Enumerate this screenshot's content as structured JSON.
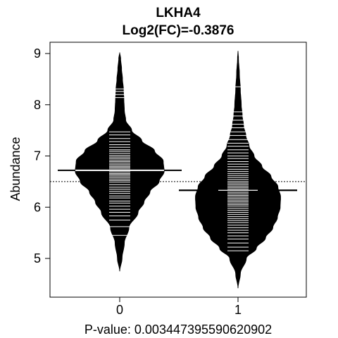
{
  "chart_data": {
    "type": "beanplot",
    "title": "LKHA4",
    "subtitle": "Log2(FC)=-0.3876",
    "xlabel": "P-value: 0.00344739559062090​2",
    "ylabel": "Abundance",
    "categories": [
      "0",
      "1"
    ],
    "ylim": [
      4.3,
      9.2
    ],
    "yticks": [
      5,
      6,
      7,
      8,
      9
    ],
    "overall_reference_line": 6.5,
    "grid": false,
    "colors": {
      "bean": "#000000",
      "stripe": "#ffffff",
      "background": "#ffffff"
    },
    "groups": [
      {
        "category": "0",
        "mean": 6.72,
        "range": [
          4.75,
          9.02
        ],
        "density_profile": [
          [
            4.75,
            0.0
          ],
          [
            5.0,
            0.05
          ],
          [
            5.3,
            0.1
          ],
          [
            5.6,
            0.2
          ],
          [
            5.9,
            0.4
          ],
          [
            6.1,
            0.53
          ],
          [
            6.3,
            0.66
          ],
          [
            6.5,
            0.86
          ],
          [
            6.7,
            0.97
          ],
          [
            6.9,
            0.95
          ],
          [
            7.1,
            0.76
          ],
          [
            7.3,
            0.48
          ],
          [
            7.5,
            0.26
          ],
          [
            7.7,
            0.13
          ],
          [
            7.9,
            0.1
          ],
          [
            8.1,
            0.09
          ],
          [
            8.3,
            0.08
          ],
          [
            8.5,
            0.06
          ],
          [
            8.7,
            0.04
          ],
          [
            8.9,
            0.02
          ],
          [
            9.02,
            0.0
          ]
        ],
        "observations": [
          5.45,
          5.62,
          5.75,
          5.83,
          5.9,
          5.96,
          6.02,
          6.08,
          6.12,
          6.18,
          6.22,
          6.27,
          6.31,
          6.35,
          6.39,
          6.44,
          6.49,
          6.52,
          6.55,
          6.58,
          6.61,
          6.64,
          6.66,
          6.69,
          6.72,
          6.75,
          6.78,
          6.8,
          6.83,
          6.86,
          6.89,
          6.92,
          6.95,
          6.98,
          7.01,
          7.05,
          7.09,
          7.12,
          7.17,
          7.22,
          7.28,
          7.34,
          7.41,
          7.47,
          8.14,
          8.2,
          8.26,
          8.31
        ]
      },
      {
        "category": "1",
        "mean": 6.33,
        "range": [
          4.42,
          9.05
        ],
        "density_profile": [
          [
            4.42,
            0.0
          ],
          [
            4.7,
            0.05
          ],
          [
            5.0,
            0.18
          ],
          [
            5.2,
            0.4
          ],
          [
            5.4,
            0.6
          ],
          [
            5.6,
            0.76
          ],
          [
            5.8,
            0.86
          ],
          [
            6.0,
            0.92
          ],
          [
            6.2,
            0.93
          ],
          [
            6.4,
            0.87
          ],
          [
            6.6,
            0.72
          ],
          [
            6.8,
            0.52
          ],
          [
            7.0,
            0.35
          ],
          [
            7.2,
            0.24
          ],
          [
            7.4,
            0.17
          ],
          [
            7.6,
            0.12
          ],
          [
            7.8,
            0.09
          ],
          [
            8.0,
            0.07
          ],
          [
            8.3,
            0.05
          ],
          [
            8.6,
            0.03
          ],
          [
            8.9,
            0.01
          ],
          [
            9.05,
            0.0
          ]
        ],
        "observations": [
          5.15,
          5.22,
          5.3,
          5.38,
          5.44,
          5.5,
          5.55,
          5.6,
          5.65,
          5.7,
          5.74,
          5.78,
          5.82,
          5.86,
          5.9,
          5.94,
          5.98,
          6.02,
          6.05,
          6.08,
          6.11,
          6.14,
          6.17,
          6.2,
          6.23,
          6.26,
          6.29,
          6.32,
          6.35,
          6.38,
          6.41,
          6.44,
          6.47,
          6.5,
          6.54,
          6.58,
          6.62,
          6.66,
          6.7,
          6.74,
          6.79,
          6.84,
          6.89,
          6.95,
          7.0,
          7.06,
          7.12,
          7.19,
          7.25,
          7.32,
          7.4,
          7.47,
          7.55,
          7.62,
          7.7,
          7.78,
          7.86,
          8.35
        ]
      }
    ]
  }
}
